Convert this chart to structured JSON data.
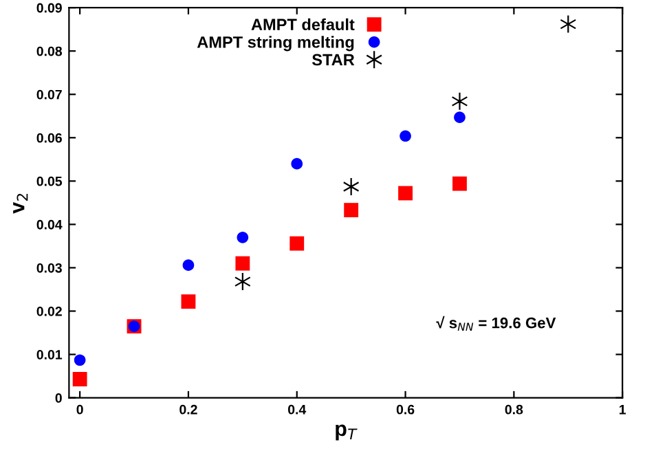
{
  "chart_data": {
    "type": "scatter",
    "xlabel": "p$_{T}$",
    "ylabel": "v$_{2}$",
    "xlim": [
      -0.02,
      1
    ],
    "xticks": [
      0,
      0.2,
      0.4,
      0.6,
      0.8,
      1
    ],
    "ylim": [
      0,
      0.09
    ],
    "yticks": [
      0,
      0.01,
      0.02,
      0.03,
      0.04,
      0.05,
      0.06,
      0.07,
      0.08,
      0.09
    ],
    "grid": false,
    "legend": "top",
    "annotations": [
      "√ s$_{NN}$ = 19.6 GeV"
    ],
    "series": [
      {
        "name": "AMPT default",
        "color": "#ff0000",
        "marker": "square",
        "x": [
          0,
          0.1,
          0.2,
          0.3,
          0.4,
          0.5,
          0.6,
          0.7
        ],
        "values": [
          0.0043,
          0.0165,
          0.0222,
          0.031,
          0.0356,
          0.0433,
          0.0472,
          0.0494
        ]
      },
      {
        "name": "AMPT string melting",
        "color": "#0000ff",
        "marker": "circle",
        "x": [
          0,
          0.1,
          0.2,
          0.3,
          0.4,
          0.6,
          0.7
        ],
        "values": [
          0.0087,
          0.0165,
          0.0306,
          0.037,
          0.054,
          0.0604,
          0.0647
        ]
      },
      {
        "name": "STAR",
        "color": "#000000",
        "marker": "cross",
        "x": [
          0.3,
          0.5,
          0.7,
          0.9
        ],
        "values": [
          0.0268,
          0.0487,
          0.0684,
          0.0862
        ]
      }
    ]
  }
}
